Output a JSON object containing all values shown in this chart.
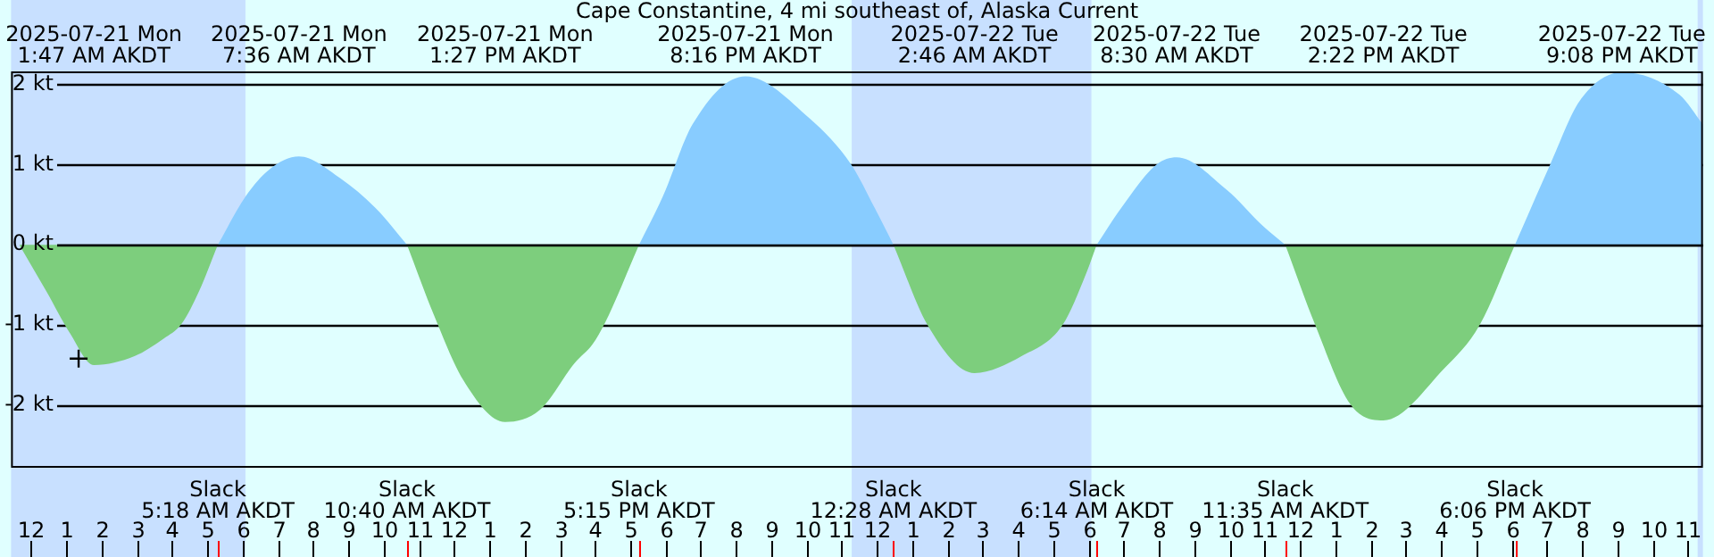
{
  "chart_data": {
    "type": "area",
    "title": "Cape Constantine, 4 mi southeast of, Alaska Current",
    "xlim": [
      "2025-07-20T23:26",
      "2025-07-22T23:26"
    ],
    "ylim": [
      -2.78,
      2.16
    ],
    "xticks": [
      {
        "value": "2025-07-21T00:00",
        "label": "12"
      },
      {
        "value": "2025-07-21T01:00",
        "label": "1"
      },
      {
        "value": "2025-07-21T02:00",
        "label": "2"
      },
      {
        "value": "2025-07-21T03:00",
        "label": "3"
      },
      {
        "value": "2025-07-21T04:00",
        "label": "4"
      },
      {
        "value": "2025-07-21T05:00",
        "label": "5"
      },
      {
        "value": "2025-07-21T06:00",
        "label": "6"
      },
      {
        "value": "2025-07-21T07:00",
        "label": "7"
      },
      {
        "value": "2025-07-21T08:00",
        "label": "8"
      },
      {
        "value": "2025-07-21T09:00",
        "label": "9"
      },
      {
        "value": "2025-07-21T10:00",
        "label": "10"
      },
      {
        "value": "2025-07-21T11:00",
        "label": "11"
      },
      {
        "value": "2025-07-21T12:00",
        "label": "12"
      },
      {
        "value": "2025-07-21T13:00",
        "label": "1"
      },
      {
        "value": "2025-07-21T14:00",
        "label": "2"
      },
      {
        "value": "2025-07-21T15:00",
        "label": "3"
      },
      {
        "value": "2025-07-21T16:00",
        "label": "4"
      },
      {
        "value": "2025-07-21T17:00",
        "label": "5"
      },
      {
        "value": "2025-07-21T18:00",
        "label": "6"
      },
      {
        "value": "2025-07-21T19:00",
        "label": "7"
      },
      {
        "value": "2025-07-21T20:00",
        "label": "8"
      },
      {
        "value": "2025-07-21T21:00",
        "label": "9"
      },
      {
        "value": "2025-07-21T22:00",
        "label": "10"
      },
      {
        "value": "2025-07-21T23:00",
        "label": "11"
      },
      {
        "value": "2025-07-22T00:00",
        "label": "12"
      },
      {
        "value": "2025-07-22T01:00",
        "label": "1"
      },
      {
        "value": "2025-07-22T02:00",
        "label": "2"
      },
      {
        "value": "2025-07-22T03:00",
        "label": "3"
      },
      {
        "value": "2025-07-22T04:00",
        "label": "4"
      },
      {
        "value": "2025-07-22T05:00",
        "label": "5"
      },
      {
        "value": "2025-07-22T06:00",
        "label": "6"
      },
      {
        "value": "2025-07-22T07:00",
        "label": "7"
      },
      {
        "value": "2025-07-22T08:00",
        "label": "8"
      },
      {
        "value": "2025-07-22T09:00",
        "label": "9"
      },
      {
        "value": "2025-07-22T10:00",
        "label": "10"
      },
      {
        "value": "2025-07-22T11:00",
        "label": "11"
      },
      {
        "value": "2025-07-22T12:00",
        "label": "12"
      },
      {
        "value": "2025-07-22T13:00",
        "label": "1"
      },
      {
        "value": "2025-07-22T14:00",
        "label": "2"
      },
      {
        "value": "2025-07-22T15:00",
        "label": "3"
      },
      {
        "value": "2025-07-22T16:00",
        "label": "4"
      },
      {
        "value": "2025-07-22T17:00",
        "label": "5"
      },
      {
        "value": "2025-07-22T18:00",
        "label": "6"
      },
      {
        "value": "2025-07-22T19:00",
        "label": "7"
      },
      {
        "value": "2025-07-22T20:00",
        "label": "8"
      },
      {
        "value": "2025-07-22T21:00",
        "label": "9"
      },
      {
        "value": "2025-07-22T22:00",
        "label": "10"
      },
      {
        "value": "2025-07-22T23:00",
        "label": "11"
      }
    ],
    "yticks": [
      {
        "value": 2,
        "label": "2 kt"
      },
      {
        "value": 1,
        "label": "1 kt"
      },
      {
        "value": 0,
        "label": "0 kt"
      },
      {
        "value": -1,
        "label": "-1 kt"
      },
      {
        "value": -2,
        "label": "-2 kt"
      }
    ],
    "grid": "y",
    "legend": false,
    "bands": [
      {
        "axis": "x",
        "from": "2025-07-20T23:26",
        "to": "2025-07-21T06:05",
        "color": "#c8e0ff"
      },
      {
        "axis": "x",
        "from": "2025-07-21T23:17",
        "to": "2025-07-22T06:05",
        "color": "#c8e0ff"
      },
      {
        "axis": "x",
        "from": "2025-07-22T23:17",
        "to": "2025-07-22T23:26",
        "color": "#c8e0ff"
      }
    ],
    "series": [
      {
        "color": "#88ccff",
        "x": [
          "2025-07-21T05:18",
          "2025-07-21T06:06",
          "2025-07-21T06:46",
          "2025-07-21T07:36",
          "2025-07-21T08:46",
          "2025-07-21T09:46",
          "2025-07-21T10:40",
          null,
          "2025-07-21T17:15",
          "2025-07-21T17:56",
          "2025-07-21T18:46",
          "2025-07-21T20:16",
          "2025-07-21T22:06",
          "2025-07-21T23:16",
          "2025-07-21T23:56",
          "2025-07-22T00:28",
          null,
          "2025-07-22T06:14",
          "2025-07-22T06:56",
          "2025-07-22T07:56",
          "2025-07-22T08:30",
          "2025-07-22T09:56",
          "2025-07-22T10:56",
          "2025-07-22T11:35",
          null,
          "2025-07-22T18:06",
          "2025-07-22T19:06",
          "2025-07-22T19:56",
          "2025-07-22T21:08",
          "2025-07-22T22:46",
          "2025-07-22T23:26"
        ],
        "values": [
          0,
          0.61,
          0.94,
          1.1,
          0.83,
          0.46,
          0,
          null,
          0,
          0.61,
          1.5,
          2.1,
          1.57,
          1.0,
          0.46,
          0,
          null,
          0,
          0.46,
          1.0,
          1.09,
          0.68,
          0.24,
          0,
          null,
          0,
          1.0,
          1.79,
          2.15,
          1.87,
          1.5
        ]
      },
      {
        "color": "#7dce7d",
        "x": [
          "2025-07-20T23:40",
          "2025-07-21T00:26",
          "2025-07-21T01:06",
          "2025-07-21T01:47",
          "2025-07-21T02:56",
          "2025-07-21T03:46",
          "2025-07-21T04:16",
          "2025-07-21T04:46",
          "2025-07-21T05:18",
          null,
          "2025-07-21T10:40",
          "2025-07-21T11:26",
          "2025-07-21T12:16",
          "2025-07-21T13:27",
          "2025-07-21T14:26",
          "2025-07-21T15:26",
          "2025-07-21T15:56",
          "2025-07-21T16:16",
          "2025-07-21T17:15",
          null,
          "2025-07-22T00:28",
          "2025-07-22T01:26",
          "2025-07-22T02:46",
          "2025-07-22T04:06",
          "2025-07-22T05:16",
          "2025-07-22T05:56",
          "2025-07-22T06:14",
          null,
          "2025-07-22T11:35",
          "2025-07-22T12:26",
          "2025-07-22T13:26",
          "2025-07-22T14:22",
          "2025-07-22T16:06",
          "2025-07-22T17:06",
          "2025-07-22T18:06"
        ],
        "values": [
          0,
          -0.58,
          -1.1,
          -1.5,
          -1.39,
          -1.17,
          -0.99,
          -0.58,
          0,
          null,
          0,
          -0.88,
          -1.69,
          -2.21,
          -2.06,
          -1.47,
          -1.24,
          -0.99,
          0,
          null,
          0,
          -1.0,
          -1.6,
          -1.39,
          -1.0,
          -0.36,
          0,
          null,
          0,
          -1.0,
          -1.99,
          -2.19,
          -1.54,
          -1.0,
          0
        ]
      },
      {
        "type": "scatter",
        "color": "#000000",
        "marker": "cross",
        "x": [
          "2025-07-21T01:21"
        ],
        "values": [
          -1.42
        ]
      }
    ],
    "annotations": [
      "2025-07-21 Mon\n1:47 AM AKDT",
      "2025-07-21 Mon\n7:36 AM AKDT",
      "2025-07-21 Mon\n1:27 PM AKDT",
      "2025-07-21 Mon\n8:16 PM AKDT",
      "2025-07-22 Tue\n2:46 AM AKDT",
      "2025-07-22 Tue\n8:30 AM AKDT",
      "2025-07-22 Tue\n2:22 PM AKDT",
      "2025-07-22 Tue\n9:08 PM AKDT",
      "Slack\n5:18 AM AKDT",
      "Slack\n10:40 AM AKDT",
      "Slack\n5:15 PM AKDT",
      "Slack\n12:28 AM AKDT",
      "Slack\n6:14 AM AKDT",
      "Slack\n11:35 AM AKDT",
      "Slack\n6:06 PM AKDT"
    ]
  }
}
